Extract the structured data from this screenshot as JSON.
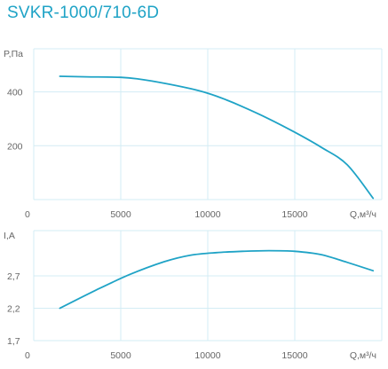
{
  "title": "SVKR-1000/710-6D",
  "colors": {
    "accent": "#1fa3c6",
    "grid": "#d3ecf4",
    "text": "#666666"
  },
  "chart_data": [
    {
      "type": "line",
      "title": "SVKR-1000/710-6D",
      "xlabel": "Q,м³/ч",
      "ylabel": "P,Па",
      "xlim": [
        0,
        20000
      ],
      "ylim": [
        0,
        560
      ],
      "x_ticks": [
        "0",
        "5000",
        "10000",
        "15000"
      ],
      "y_ticks": [
        {
          "value": 200,
          "label": "200"
        },
        {
          "value": 400,
          "label": "400"
        }
      ],
      "grid": true,
      "series": [
        {
          "x": [
            1500,
            3000,
            5000,
            6000,
            7500,
            9000,
            10000,
            11000,
            12000,
            13500,
            15000,
            16500,
            18000,
            19500
          ],
          "y": [
            458,
            456,
            454,
            448,
            432,
            412,
            395,
            372,
            345,
            300,
            250,
            195,
            130,
            5
          ]
        }
      ]
    },
    {
      "type": "line",
      "xlabel": "Q,м³/ч",
      "ylabel": "I,А",
      "xlim": [
        0,
        20000
      ],
      "ylim": [
        1.7,
        3.4
      ],
      "x_ticks": [
        "0",
        "5000",
        "10000",
        "15000"
      ],
      "y_ticks": [
        {
          "value": 1.7,
          "label": "1,7"
        },
        {
          "value": 2.2,
          "label": "2,2"
        },
        {
          "value": 2.7,
          "label": "2,7"
        }
      ],
      "grid": true,
      "series": [
        {
          "x": [
            1500,
            3500,
            5500,
            7500,
            9000,
            10500,
            12000,
            13500,
            15000,
            16500,
            18000,
            19500
          ],
          "y": [
            2.2,
            2.47,
            2.72,
            2.92,
            3.02,
            3.06,
            3.08,
            3.09,
            3.08,
            3.03,
            2.91,
            2.78
          ]
        }
      ]
    }
  ]
}
